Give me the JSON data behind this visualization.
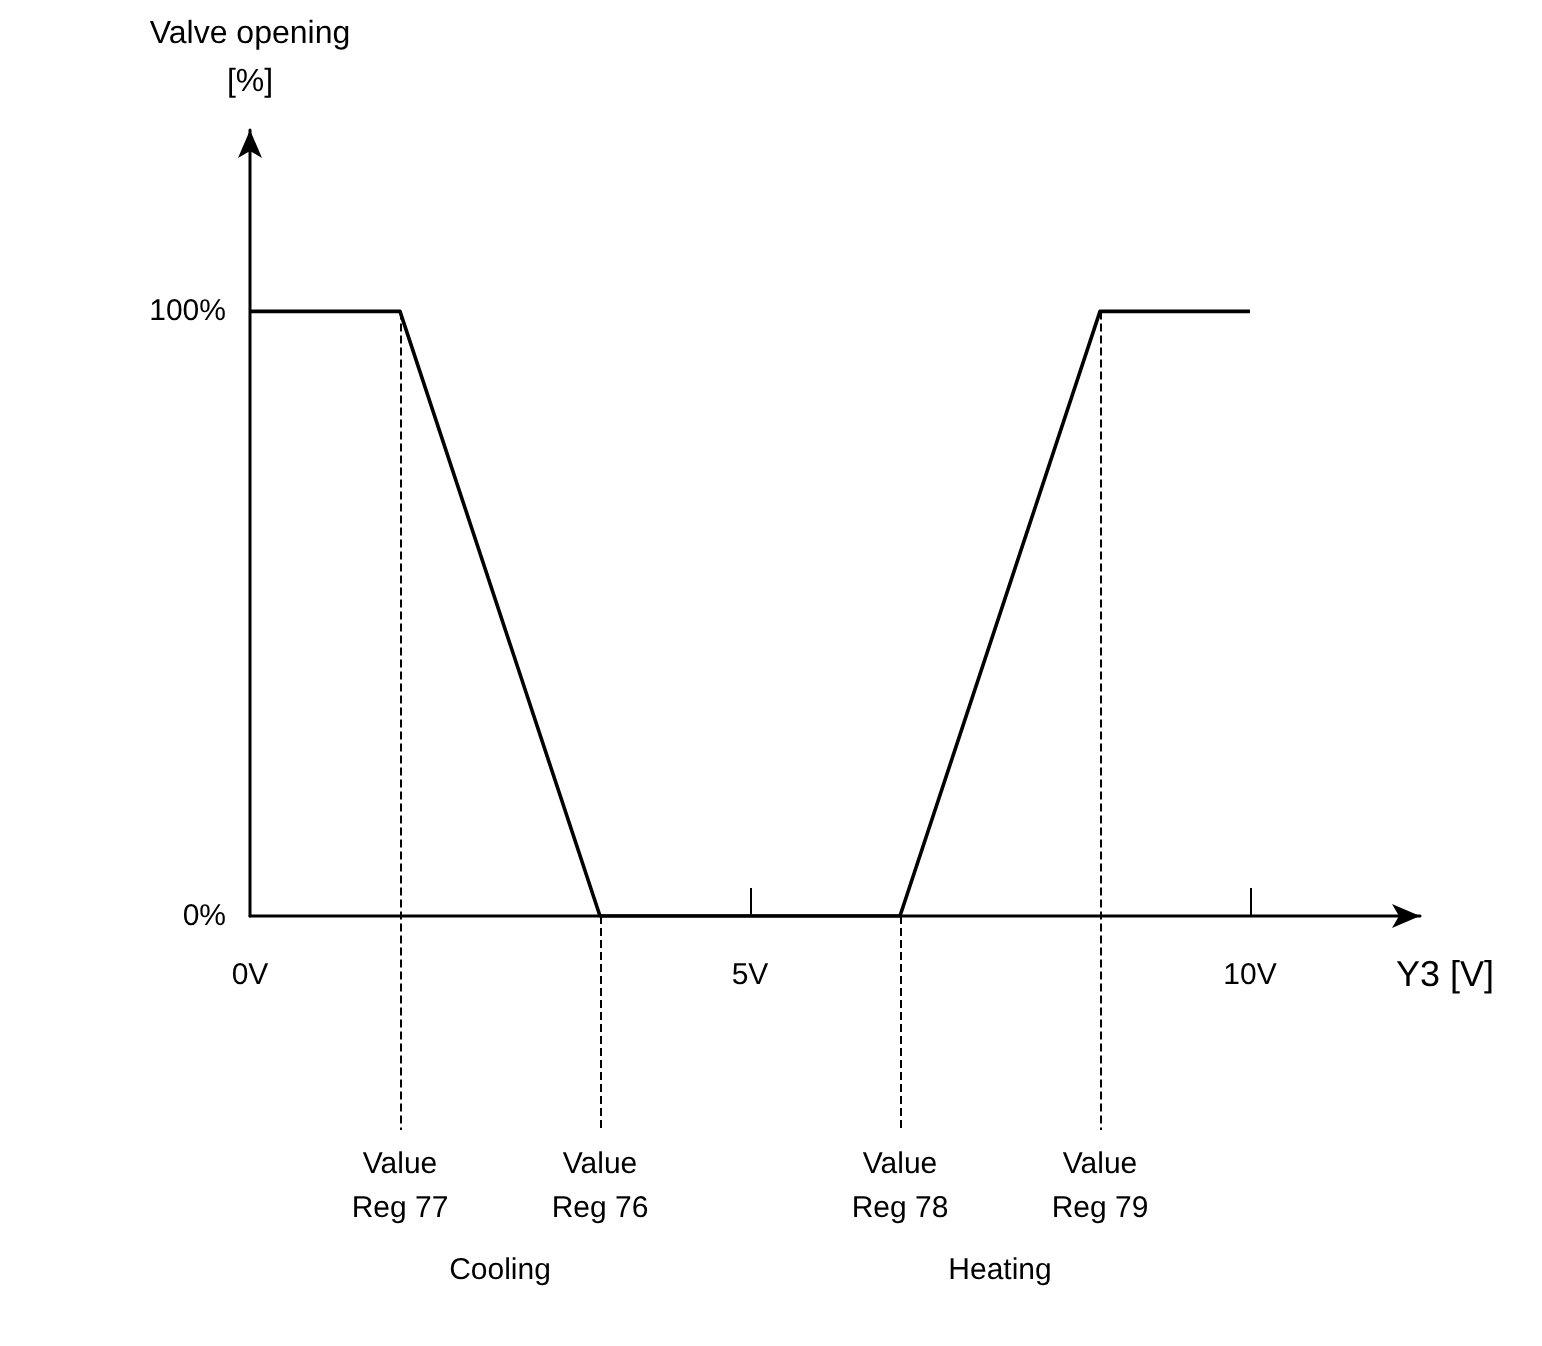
{
  "chart_data": {
    "type": "line",
    "xlabel": "Y3 [V]",
    "ylabel": "Valve opening\n[%]",
    "x": [
      0,
      1.5,
      3.5,
      6.5,
      8.5,
      10
    ],
    "series": [
      {
        "color": "#000000",
        "values": [
          100,
          100,
          0,
          0,
          100,
          100
        ]
      }
    ],
    "xlim": [
      0,
      11.7
    ],
    "ylim": [
      0,
      130
    ],
    "xticks": [
      {
        "value": 0,
        "label": "0V"
      },
      {
        "value": 5,
        "label": "5V"
      },
      {
        "value": 10,
        "label": "10V"
      }
    ],
    "yticks": [
      {
        "value": 0,
        "label": "0%"
      },
      {
        "value": 100,
        "label": "100%"
      }
    ],
    "ref_lines": [
      {
        "axis": "x",
        "value": 1.5,
        "label": "Value\nReg 77",
        "line_style": "dashed"
      },
      {
        "axis": "x",
        "value": 3.5,
        "label": "Value\nReg 76",
        "line_style": "dashed"
      },
      {
        "axis": "x",
        "value": 6.5,
        "label": "Value\nReg 78",
        "line_style": "dashed"
      },
      {
        "axis": "x",
        "value": 8.5,
        "label": "Value\nReg 79",
        "line_style": "dashed"
      }
    ],
    "annotations": [
      "Cooling",
      "Heating"
    ],
    "grid": false,
    "marker": "none",
    "line_style": "solid"
  }
}
